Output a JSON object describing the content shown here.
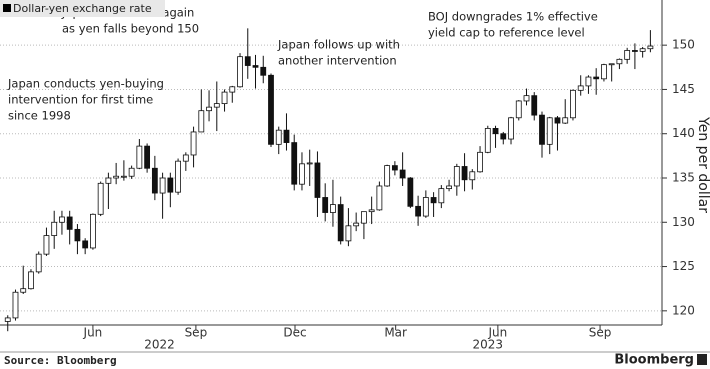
{
  "chart_data": {
    "type": "candlestick",
    "legend": "Dollar-yen exchange rate",
    "y_label": "Yen per dollar",
    "source": "Source: Bloomberg",
    "brand": "Bloomberg",
    "annotations": [
      {
        "lines": [
          "Japan conducts yen-buying",
          "intervention for first time",
          "since 1998"
        ]
      },
      {
        "lines": [
          "Japan intervenes again",
          "as yen falls beyond 150"
        ]
      },
      {
        "lines": [
          "Japan follows up with",
          "another intervention"
        ]
      },
      {
        "lines": [
          "BOJ downgrades 1% effective",
          "yield cap to reference level"
        ]
      }
    ],
    "open": [
      118.8,
      119.2,
      122.1,
      122.5,
      124.4,
      126.4,
      128.5,
      130.0,
      130.6,
      129.2,
      127.9,
      127.1,
      130.9,
      134.4,
      135.0,
      135.2,
      135.2,
      136.1,
      138.6,
      136.1,
      133.3,
      135.0,
      133.4,
      136.9,
      137.6,
      140.2,
      142.6,
      143.0,
      143.4,
      144.7,
      145.3,
      148.7,
      147.7,
      147.5,
      146.6,
      138.8,
      140.4,
      139.0,
      134.3,
      136.6,
      136.7,
      132.8,
      131.1,
      132.0,
      127.9,
      129.6,
      129.9,
      131.2,
      131.4,
      134.1,
      136.4,
      135.9,
      135.0,
      131.8,
      130.7,
      132.8,
      132.2,
      133.8,
      134.1,
      136.3,
      134.8,
      135.7,
      137.9,
      140.6,
      140.0,
      139.4,
      141.8,
      143.7,
      144.3,
      142.1,
      138.8,
      141.8,
      141.2,
      141.8,
      144.9,
      145.4,
      146.4,
      146.2,
      147.8,
      147.9,
      148.4,
      149.4,
      149.3,
      149.6
    ],
    "high": [
      119.5,
      122.4,
      125.1,
      124.7,
      126.7,
      129.4,
      131.3,
      131.3,
      131.3,
      129.8,
      128.2,
      131.0,
      134.6,
      135.6,
      136.7,
      137.0,
      136.4,
      139.4,
      138.9,
      137.5,
      135.6,
      135.6,
      137.2,
      137.9,
      140.8,
      145.0,
      144.9,
      145.9,
      145.0,
      145.4,
      149.1,
      151.9,
      148.9,
      148.8,
      146.8,
      140.8,
      142.3,
      139.9,
      137.9,
      138.2,
      138.0,
      134.4,
      134.8,
      132.9,
      131.6,
      131.1,
      131.2,
      132.9,
      134.6,
      136.5,
      136.9,
      137.9,
      135.1,
      133.0,
      133.6,
      133.4,
      134.2,
      134.8,
      136.6,
      137.8,
      136.0,
      138.6,
      140.9,
      140.9,
      140.2,
      141.9,
      143.8,
      145.1,
      144.7,
      142.5,
      141.9,
      142.0,
      143.9,
      145.0,
      146.6,
      146.6,
      147.4,
      147.9,
      147.9,
      148.5,
      149.7,
      150.2,
      149.8,
      151.7
    ],
    "low": [
      117.7,
      118.9,
      121.9,
      122.4,
      124.2,
      126.2,
      127.0,
      128.6,
      127.5,
      126.4,
      126.4,
      126.9,
      130.7,
      131.5,
      134.3,
      134.7,
      134.9,
      136.0,
      135.6,
      132.5,
      130.4,
      131.7,
      133.1,
      135.8,
      136.2,
      140.2,
      141.4,
      140.3,
      142.5,
      143.5,
      145.2,
      146.2,
      145.1,
      145.7,
      138.5,
      137.7,
      138.1,
      133.6,
      133.6,
      134.1,
      130.6,
      130.1,
      129.5,
      127.5,
      127.3,
      129.0,
      128.1,
      129.8,
      131.3,
      134.0,
      135.3,
      134.1,
      131.6,
      129.6,
      130.5,
      130.6,
      131.6,
      133.5,
      133.0,
      133.5,
      133.7,
      135.6,
      137.8,
      138.4,
      138.8,
      138.8,
      141.5,
      143.2,
      141.5,
      137.3,
      137.7,
      138.1,
      141.1,
      141.5,
      144.3,
      144.5,
      144.4,
      145.9,
      145.9,
      147.3,
      147.9,
      147.3,
      148.6,
      149.2
    ],
    "close": [
      119.2,
      122.1,
      122.5,
      124.4,
      126.4,
      128.5,
      130.0,
      130.6,
      129.2,
      127.9,
      127.1,
      130.9,
      134.4,
      135.0,
      135.2,
      135.2,
      136.1,
      138.6,
      136.1,
      133.3,
      135.0,
      133.4,
      136.9,
      137.6,
      140.2,
      142.6,
      143.0,
      143.4,
      144.7,
      145.3,
      148.7,
      147.7,
      147.5,
      146.6,
      138.8,
      140.4,
      139.0,
      134.3,
      136.6,
      136.7,
      132.8,
      131.1,
      132.0,
      127.9,
      129.6,
      129.9,
      131.2,
      131.4,
      134.1,
      136.4,
      135.9,
      135.0,
      131.8,
      130.7,
      132.8,
      132.2,
      133.8,
      134.1,
      136.3,
      134.8,
      135.7,
      137.9,
      140.6,
      140.0,
      139.4,
      141.8,
      143.7,
      144.3,
      142.1,
      138.8,
      141.8,
      141.2,
      141.8,
      144.9,
      145.4,
      146.4,
      146.2,
      147.8,
      147.9,
      148.4,
      149.4,
      149.3,
      149.6,
      149.9
    ],
    "up_color": "#ffffff",
    "down_color": "#111111",
    "wick_color": "#111111",
    "xlim": [
      -1,
      84.5
    ],
    "xticks": [
      {
        "value": 11,
        "label": "Jun"
      },
      {
        "value": 24.3,
        "label": "Sep"
      },
      {
        "value": 37.1,
        "label": "Dec"
      },
      {
        "value": 50.1,
        "label": "Mar"
      },
      {
        "value": 63.3,
        "label": "Jun"
      },
      {
        "value": 76.5,
        "label": "Sep"
      }
    ],
    "year_labels": [
      {
        "value": 19.6,
        "label": "2022"
      },
      {
        "value": 62,
        "label": "2023"
      }
    ],
    "ylim": [
      118.4,
      155.1
    ],
    "yticks": [
      120,
      125,
      130,
      135,
      140,
      145,
      150
    ],
    "grid": true
  }
}
